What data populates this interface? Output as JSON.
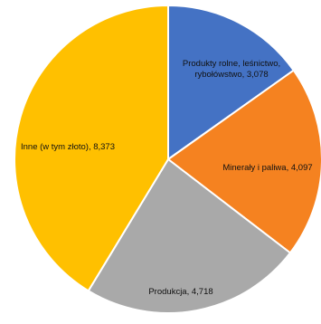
{
  "chart_data": {
    "type": "pie",
    "title": "",
    "slices": [
      {
        "label_lines": [
          "Produkty rolne, leśnictwo,",
          "rybołówstwo,   3,078"
        ],
        "value": 3.078,
        "color": "#4472C4"
      },
      {
        "label_lines": [
          "Minerały i paliwa,   4,097"
        ],
        "value": 4.097,
        "color": "#F58220"
      },
      {
        "label_lines": [
          "Produkcja,   4,718"
        ],
        "value": 4.718,
        "color": "#A9A9A9"
      },
      {
        "label_lines": [
          "Inne (w tym złoto),   8,373"
        ],
        "value": 8.373,
        "color": "#FFC000"
      }
    ],
    "start_angle_deg": 0,
    "direction": "clockwise",
    "legend": "none"
  }
}
